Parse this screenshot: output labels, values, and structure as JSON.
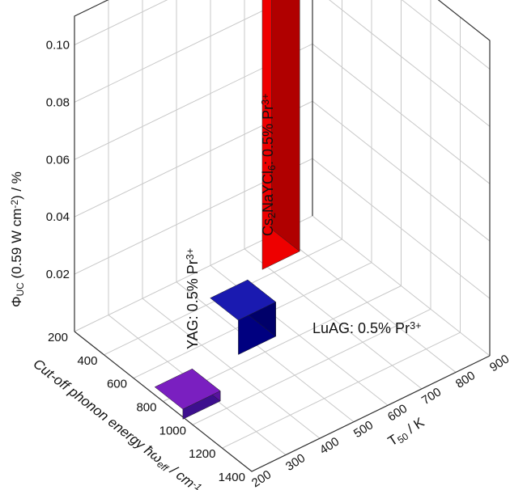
{
  "chart_data": {
    "type": "bar3d",
    "z_axis": {
      "label_parts": [
        "Φ",
        "UC",
        " (0.59 W cm",
        "-2",
        ") / %"
      ],
      "ticks": [
        "0.02",
        "0.04",
        "0.06",
        "0.08",
        "0.10"
      ],
      "tick_values": [
        0.02,
        0.04,
        0.06,
        0.08,
        0.1
      ],
      "range": [
        0,
        0.11
      ]
    },
    "phonon_axis": {
      "label_parts": [
        "Cut-off phonon energy ",
        "ħω",
        "eff",
        " / cm",
        "-1"
      ],
      "ticks": [
        "200",
        "400",
        "600",
        "800",
        "1000",
        "1200",
        "1400"
      ],
      "tick_values": [
        200,
        400,
        600,
        800,
        1000,
        1200,
        1400
      ],
      "range": [
        200,
        1400
      ]
    },
    "t50_axis": {
      "label_parts": [
        "T",
        "50",
        " / K"
      ],
      "ticks": [
        "200",
        "300",
        "400",
        "500",
        "600",
        "700",
        "800",
        "900"
      ],
      "tick_values": [
        200,
        300,
        400,
        500,
        600,
        700,
        800,
        900
      ],
      "range": [
        200,
        900
      ]
    },
    "bars": [
      {
        "label_parts": [
          "YAG: 0.5% Pr",
          "3+"
        ],
        "phonon_energy": 850,
        "t50": 250,
        "phi_uc": 0.0035,
        "colors": {
          "top": "#7a1fc0",
          "front": "#3d0f8e",
          "side": "#58139f"
        }
      },
      {
        "label_parts": [
          "LuAG: 0.5% Pr",
          "3+"
        ],
        "phonon_energy": 650,
        "t50": 500,
        "phi_uc": 0.012,
        "colors": {
          "top": "#1a1ab0",
          "front": "#000080",
          "side": "#00006a"
        }
      },
      {
        "label_parts": [
          "Cs",
          "2",
          "NaYCl",
          "6",
          ": 0.5% Pr",
          "3+"
        ],
        "phonon_energy": 260,
        "t50": 740,
        "phi_uc": 0.1055,
        "colors": {
          "top": "#ff1a1a",
          "front": "#ee0000",
          "side": "#b00000"
        }
      }
    ],
    "grid": true
  }
}
